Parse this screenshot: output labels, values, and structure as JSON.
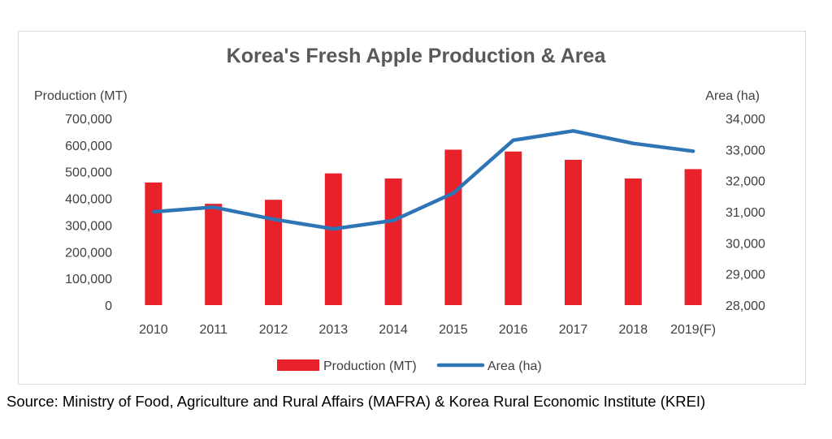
{
  "colors": {
    "production": "#e8212a",
    "area": "#2f75b5",
    "text": "#404040",
    "title": "#595959",
    "border": "#d9d9d9"
  },
  "chart_data": {
    "type": "bar",
    "title": "Korea's Fresh Apple Production & Area",
    "categories": [
      "2010",
      "2011",
      "2012",
      "2013",
      "2014",
      "2015",
      "2016",
      "2017",
      "2018",
      "2019(F)"
    ],
    "series": [
      {
        "name": "Production (MT)",
        "type": "bar",
        "axis": "left",
        "values": [
          460000,
          380000,
          395000,
          494000,
          475000,
          583000,
          576000,
          545000,
          475000,
          510000
        ]
      },
      {
        "name": "Area (ha)",
        "type": "line",
        "axis": "right",
        "values": [
          31000,
          31150,
          30760,
          30450,
          30720,
          31600,
          33300,
          33600,
          33200,
          32950
        ]
      }
    ],
    "y_left": {
      "label": "Production (MT)",
      "lim": [
        0,
        700000
      ],
      "ticks": [
        "0",
        "100,000",
        "200,000",
        "300,000",
        "400,000",
        "500,000",
        "600,000",
        "700,000"
      ]
    },
    "y_right": {
      "label": "Area (ha)",
      "lim": [
        28000,
        34000
      ],
      "ticks": [
        "28,000",
        "29,000",
        "30,000",
        "31,000",
        "32,000",
        "33,000",
        "34,000"
      ]
    },
    "grid": false,
    "legend_position": "bottom"
  },
  "source": "Source: Ministry of Food, Agriculture and Rural Affairs (MAFRA) & Korea Rural Economic Institute (KREI)"
}
